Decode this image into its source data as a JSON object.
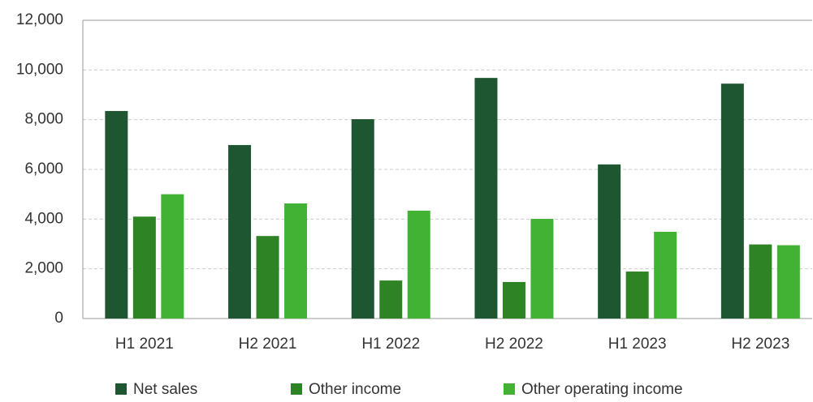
{
  "chart_data": {
    "type": "bar",
    "categories": [
      "H1 2021",
      "H2 2021",
      "H1 2022",
      "H2 2022",
      "H1 2023",
      "H2 2023"
    ],
    "series": [
      {
        "name": "Net sales",
        "color": "#1e5631",
        "values": [
          8350,
          6980,
          8020,
          9680,
          6200,
          9450
        ]
      },
      {
        "name": "Other income",
        "color": "#2e8424",
        "values": [
          4100,
          3320,
          1530,
          1470,
          1890,
          2980
        ]
      },
      {
        "name": "Other operating income",
        "color": "#42b234",
        "values": [
          5000,
          4630,
          4340,
          4010,
          3490,
          2950
        ]
      }
    ],
    "ylim": [
      0,
      12000
    ],
    "yticks": [
      0,
      {
        "value": 2000,
        "label": "2,000"
      },
      {
        "value": 4000,
        "label": "4,000"
      },
      {
        "value": 6000,
        "label": "6,000"
      },
      {
        "value": 8000,
        "label": "8,000"
      },
      {
        "value": 10000,
        "label": "10,000"
      },
      {
        "value": 12000,
        "label": "12,000"
      }
    ],
    "grid": true,
    "legend": "bottom"
  }
}
